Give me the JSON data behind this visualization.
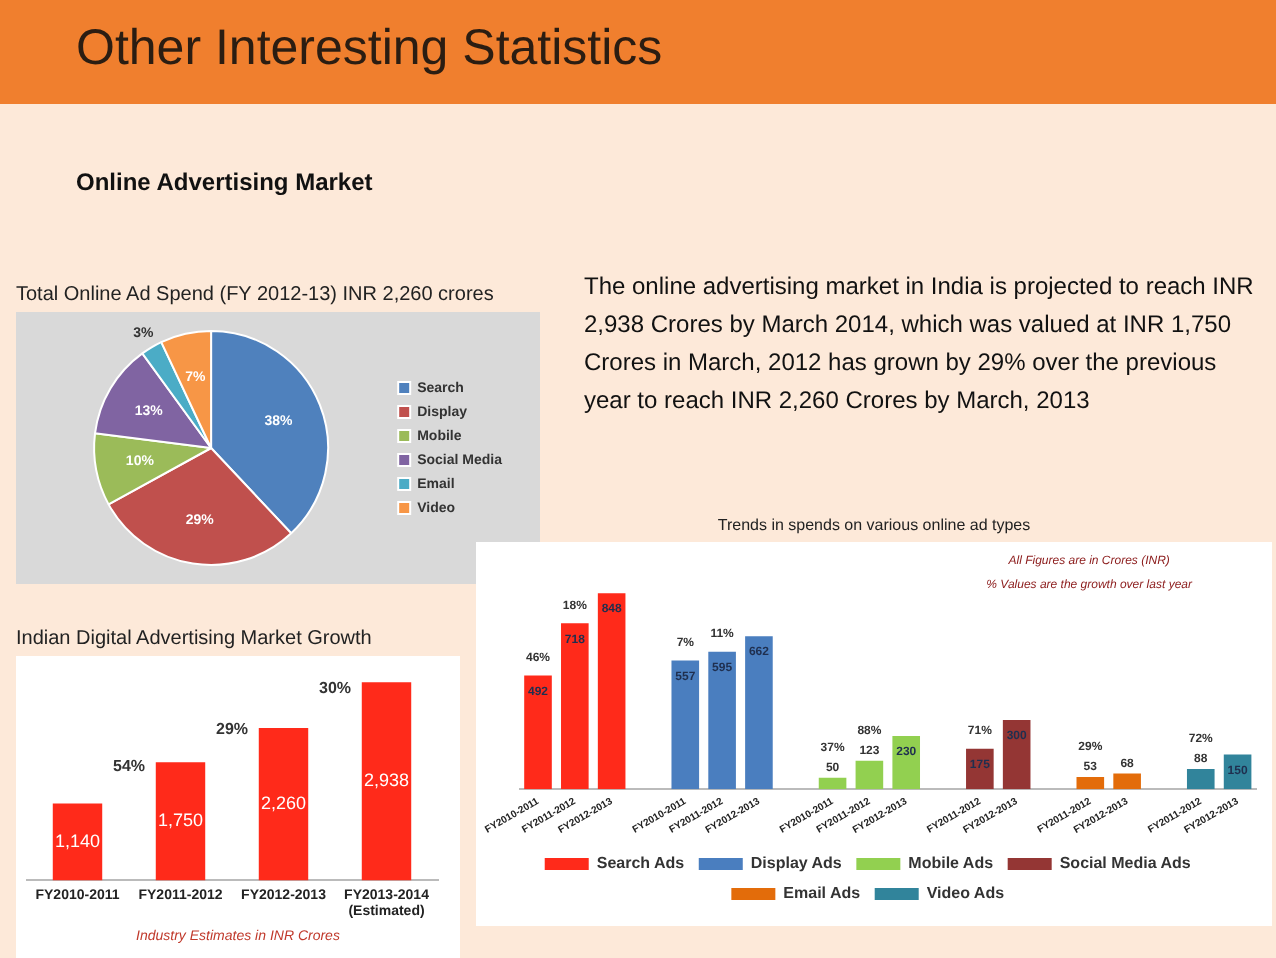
{
  "chart_data": [
    {
      "type": "other",
      "title": "Other Interesting Statistics",
      "subtitle": "Online Advertising Market",
      "annotations": [
        "The online advertising market in India is projected to reach INR 2,938 Crores by March 2014, which was valued at INR 1,750 Crores in March, 2012 has grown by 29% over the previous year to reach INR 2,260 Crores by March, 2013"
      ]
    },
    {
      "type": "pie",
      "title": "Total Online Ad Spend (FY 2012-13) INR 2,260 crores",
      "categories": [
        "Search",
        "Display",
        "Mobile",
        "Social Media",
        "Email",
        "Video"
      ],
      "values": [
        38,
        29,
        10,
        13,
        3,
        7
      ],
      "colors": [
        "#4f81bd",
        "#c0504d",
        "#9bbb59",
        "#8064a2",
        "#4bacc6",
        "#f79646"
      ],
      "value_labels": [
        "38%",
        "29%",
        "10%",
        "13%",
        "3%",
        "7%"
      ],
      "legend": "right"
    },
    {
      "type": "bar",
      "title": "Indian Digital Advertising Market Growth",
      "categories": [
        "FY2010-2011",
        "FY2011-2012",
        "FY2012-2013",
        "FY2013-2014\n(Estimated)"
      ],
      "values": [
        1140,
        1750,
        2260,
        2938
      ],
      "color": "#ff2a1a",
      "value_labels": [
        "1,140",
        "1,750",
        "2,260",
        "2,938"
      ],
      "tick_labels": "x",
      "grid": false,
      "legend": false,
      "annotations": [
        "54%",
        "29%",
        "30%",
        "Industry Estimates in INR Crores"
      ]
    },
    {
      "type": "bar",
      "title": "Trends in spends on various online ad types",
      "categories": [
        "FY2010-2011",
        "FY2011-2012",
        "FY2012-2013",
        null,
        "FY2010-2011",
        "FY2011-2012",
        "FY2012-2013",
        null,
        "FY2010-2011",
        "FY2011-2012",
        "FY2012-2013",
        null,
        "FY2011-2012",
        "FY2012-2013",
        null,
        "FY2011-2012",
        "FY2012-2013",
        null,
        "FY2011-2012",
        "FY2012-2013"
      ],
      "stacked": true,
      "data_labels": true,
      "tick_labels": "x",
      "grid": false,
      "legend": "bottom",
      "series": [
        {
          "name": "Search Ads",
          "color": "#ff2a1a",
          "values": [
            492,
            718,
            848,
            null,
            null,
            null,
            null,
            null,
            null,
            null,
            null,
            null,
            null,
            null,
            null,
            null,
            null,
            null,
            null,
            null
          ]
        },
        {
          "name": "Display Ads",
          "color": "#4a7ebf",
          "values": [
            null,
            null,
            null,
            null,
            557,
            595,
            662,
            null,
            null,
            null,
            null,
            null,
            null,
            null,
            null,
            null,
            null,
            null,
            null,
            null
          ]
        },
        {
          "name": "Mobile Ads",
          "color": "#92d050",
          "values": [
            null,
            null,
            null,
            null,
            null,
            null,
            null,
            null,
            50,
            123,
            230,
            null,
            null,
            null,
            null,
            null,
            null,
            null,
            null,
            null
          ]
        },
        {
          "name": "Social Media Ads",
          "color": "#943634",
          "values": [
            null,
            null,
            null,
            null,
            null,
            null,
            null,
            null,
            null,
            null,
            null,
            null,
            175,
            300,
            null,
            null,
            null,
            null,
            null,
            null
          ]
        },
        {
          "name": "Email Ads",
          "color": "#e36c0a",
          "values": [
            null,
            null,
            null,
            null,
            null,
            null,
            null,
            null,
            null,
            null,
            null,
            null,
            null,
            null,
            null,
            53,
            68,
            null,
            null,
            null
          ]
        },
        {
          "name": "Video Ads",
          "color": "#31849b",
          "values": [
            null,
            null,
            null,
            null,
            null,
            null,
            null,
            null,
            null,
            null,
            null,
            null,
            null,
            null,
            null,
            null,
            null,
            null,
            88,
            150
          ]
        }
      ],
      "annotations": [
        "46%",
        "18%",
        "7%",
        "11%",
        "37%",
        "88%",
        "71%",
        "29%",
        "72%",
        "All Figures are in Crores (INR)",
        "% Values are the growth over last year"
      ]
    }
  ]
}
